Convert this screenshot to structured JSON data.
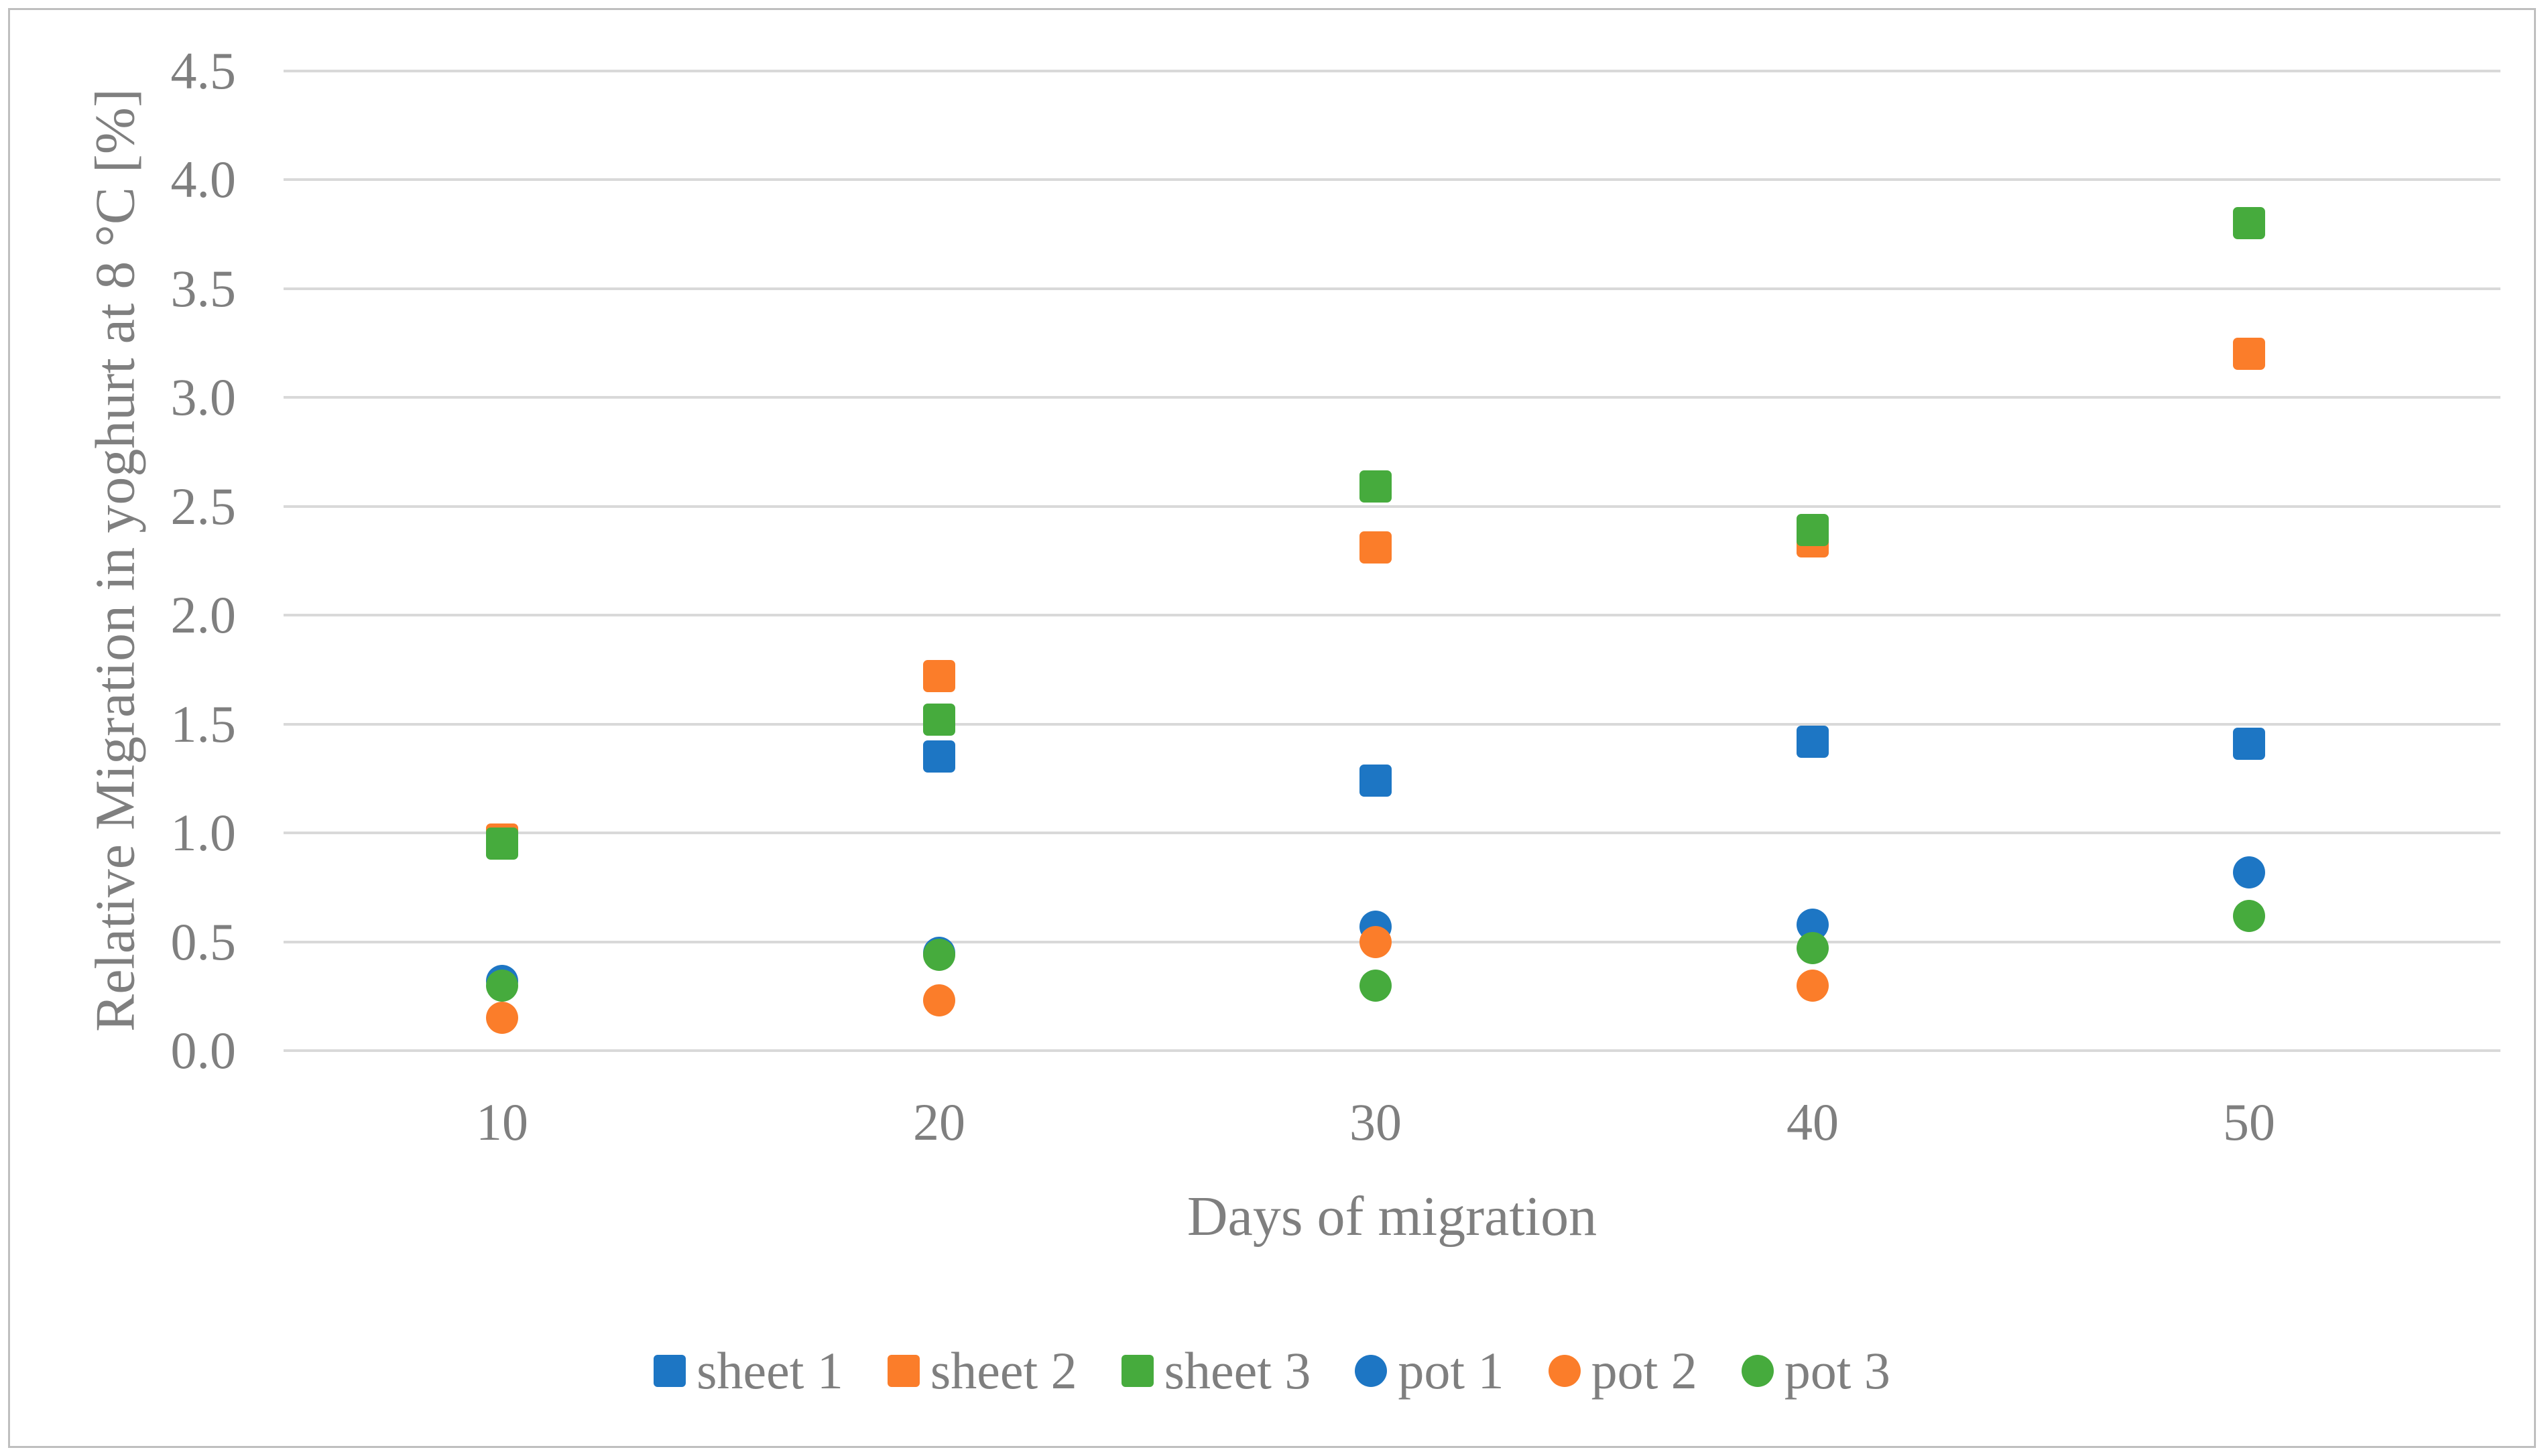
{
  "figure": {
    "background_color": "#ffffff",
    "border_color": "#bfbfbf",
    "text_color": "#7f7f7f",
    "gridline_color": "#d9d9d9"
  },
  "chart_data": {
    "type": "scatter",
    "title": "",
    "xlabel": "Days of migration",
    "ylabel": "Relative Migration in yoghurt at 8 °C [%]",
    "x_categories": [
      10,
      20,
      30,
      40,
      50
    ],
    "x_tick_labels": [
      "10",
      "20",
      "30",
      "40",
      "50"
    ],
    "y_ticks": [
      0.0,
      0.5,
      1.0,
      1.5,
      2.0,
      2.5,
      3.0,
      3.5,
      4.0,
      4.5
    ],
    "y_tick_labels": [
      "0.0",
      "0.5",
      "1.0",
      "1.5",
      "2.0",
      "2.5",
      "3.0",
      "3.5",
      "4.0",
      "4.5"
    ],
    "ylim": [
      0,
      4.5
    ],
    "grid": "horizontal",
    "legend_position": "bottom",
    "hidden_points_note": "null values are points not visible in the image (covered by overlapping markers)",
    "series": [
      {
        "name": "sheet 1",
        "marker": "square",
        "color": "#1d76c4",
        "values": [
          null,
          1.35,
          1.24,
          1.42,
          1.41
        ]
      },
      {
        "name": "sheet 2",
        "marker": "square",
        "color": "#fb7d2a",
        "values": [
          0.97,
          1.72,
          2.31,
          2.34,
          3.2
        ]
      },
      {
        "name": "sheet 3",
        "marker": "square",
        "color": "#46ab3d",
        "values": [
          0.95,
          1.52,
          2.59,
          2.39,
          3.8
        ]
      },
      {
        "name": "pot 1",
        "marker": "circle",
        "color": "#1d76c4",
        "values": [
          0.32,
          0.45,
          0.57,
          0.58,
          0.82
        ]
      },
      {
        "name": "pot 2",
        "marker": "circle",
        "color": "#fb7d2a",
        "values": [
          0.15,
          0.23,
          0.5,
          0.3,
          null
        ]
      },
      {
        "name": "pot 3",
        "marker": "circle",
        "color": "#46ab3d",
        "values": [
          0.3,
          0.44,
          0.3,
          0.47,
          0.62
        ]
      }
    ]
  }
}
